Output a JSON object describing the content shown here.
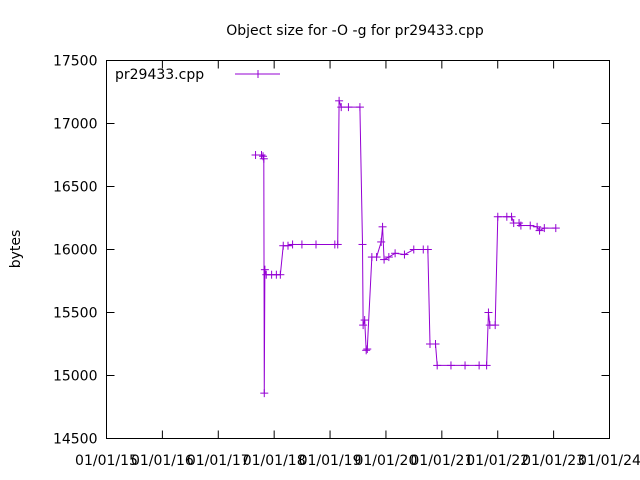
{
  "chart_data": {
    "type": "line",
    "title": "Object size for -O -g for pr29433.cpp",
    "xlabel": "",
    "ylabel": "bytes",
    "ylim": [
      14500,
      17500
    ],
    "yticks": [
      "14500",
      "15000",
      "15500",
      "16000",
      "16500",
      "17000",
      "17500"
    ],
    "xticks": [
      "01/01/15",
      "01/01/16",
      "01/01/17",
      "01/01/18",
      "01/01/19",
      "01/01/20",
      "01/01/21",
      "01/01/22",
      "01/01/23",
      "01/01/24"
    ],
    "xlim": [
      "2015-01-01",
      "2024-01-01"
    ],
    "grid": false,
    "legend_position": "top-left",
    "series": [
      {
        "name": "pr29433.cpp",
        "color": "#9400d3",
        "points": [
          [
            "2017-09-01",
            16750
          ],
          [
            "2017-10-10",
            16750
          ],
          [
            "2017-10-20",
            16740
          ],
          [
            "2017-10-25",
            16720
          ],
          [
            "2017-10-28",
            14860
          ],
          [
            "2017-11-01",
            15840
          ],
          [
            "2017-11-10",
            15800
          ],
          [
            "2017-12-15",
            15800
          ],
          [
            "2018-01-15",
            15800
          ],
          [
            "2018-02-10",
            15800
          ],
          [
            "2018-03-01",
            16030
          ],
          [
            "2018-04-01",
            16030
          ],
          [
            "2018-05-01",
            16040
          ],
          [
            "2018-07-01",
            16040
          ],
          [
            "2018-10-01",
            16040
          ],
          [
            "2019-02-01",
            16040
          ],
          [
            "2019-02-20",
            16040
          ],
          [
            "2019-03-01",
            17180
          ],
          [
            "2019-03-15",
            17130
          ],
          [
            "2019-05-01",
            17130
          ],
          [
            "2019-07-15",
            17130
          ],
          [
            "2019-08-01",
            16040
          ],
          [
            "2019-08-05",
            15400
          ],
          [
            "2019-08-15",
            15440
          ],
          [
            "2019-08-25",
            15200
          ],
          [
            "2019-09-01",
            15210
          ],
          [
            "2019-10-01",
            15940
          ],
          [
            "2019-11-01",
            15940
          ],
          [
            "2019-12-01",
            16060
          ],
          [
            "2019-12-10",
            16180
          ],
          [
            "2019-12-20",
            15920
          ],
          [
            "2020-01-20",
            15940
          ],
          [
            "2020-03-01",
            15970
          ],
          [
            "2020-05-01",
            15960
          ],
          [
            "2020-07-01",
            16000
          ],
          [
            "2020-09-01",
            16000
          ],
          [
            "2020-10-01",
            16000
          ],
          [
            "2020-10-15",
            15250
          ],
          [
            "2020-11-20",
            15250
          ],
          [
            "2020-12-01",
            15080
          ],
          [
            "2021-03-01",
            15080
          ],
          [
            "2021-06-01",
            15080
          ],
          [
            "2021-09-01",
            15080
          ],
          [
            "2021-10-20",
            15080
          ],
          [
            "2021-11-01",
            15500
          ],
          [
            "2021-11-10",
            15400
          ],
          [
            "2021-12-15",
            15400
          ],
          [
            "2022-01-01",
            16260
          ],
          [
            "2022-03-01",
            16260
          ],
          [
            "2022-04-01",
            16260
          ],
          [
            "2022-04-15",
            16210
          ],
          [
            "2022-05-20",
            16210
          ],
          [
            "2022-06-01",
            16190
          ],
          [
            "2022-08-01",
            16190
          ],
          [
            "2022-09-15",
            16180
          ],
          [
            "2022-10-01",
            16150
          ],
          [
            "2022-11-01",
            16170
          ],
          [
            "2023-01-15",
            16170
          ]
        ]
      }
    ]
  }
}
